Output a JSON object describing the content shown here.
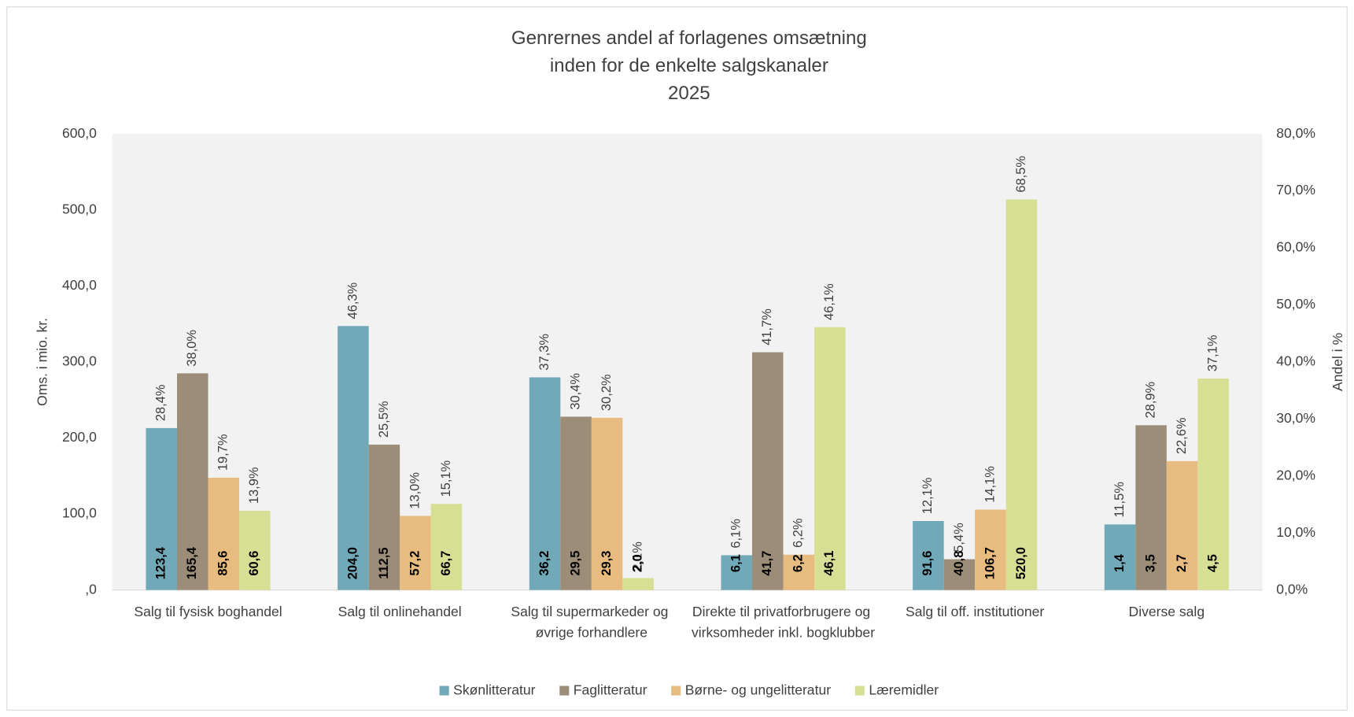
{
  "chart_data": {
    "type": "bar",
    "title": [
      "Genrernes andel af forlagenes omsætning",
      "inden for de enkelte salgskanaler",
      "2025"
    ],
    "ylabel": "Oms. i mio. kr.",
    "y2label": "Andel i %",
    "categories": [
      "Salg til fysisk boghandel",
      "Salg til onlinehandel",
      "Salg til supermarkeder og øvrige forhandlere",
      "Direkte til privatforbrugere og virksomheder inkl. bogklubber",
      "Salg til off. institutioner",
      "Diverse salg"
    ],
    "ylim": [
      0,
      600
    ],
    "yticks": [
      {
        "value": 0,
        "label": ",0"
      },
      {
        "value": 100,
        "label": "100,0"
      },
      {
        "value": 200,
        "label": "200,0"
      },
      {
        "value": 300,
        "label": "300,0"
      },
      {
        "value": 400,
        "label": "400,0"
      },
      {
        "value": 500,
        "label": "500,0"
      },
      {
        "value": 600,
        "label": "600,0"
      }
    ],
    "y2lim": [
      0,
      80
    ],
    "y2ticks": [
      {
        "value": 0,
        "label": "0,0%"
      },
      {
        "value": 10,
        "label": "10,0%"
      },
      {
        "value": 20,
        "label": "20,0%"
      },
      {
        "value": 30,
        "label": "30,0%"
      },
      {
        "value": 40,
        "label": "40,0%"
      },
      {
        "value": 50,
        "label": "50,0%"
      },
      {
        "value": 60,
        "label": "60,0%"
      },
      {
        "value": 70,
        "label": "70,0%"
      },
      {
        "value": 80,
        "label": "80,0%"
      }
    ],
    "legend": "bottom",
    "series": [
      {
        "name": "Skønlitteratur",
        "color": "#72a9b8",
        "axis": "y2",
        "values": [
          28.4,
          46.3,
          37.3,
          6.1,
          12.1,
          11.5
        ],
        "value_labels": [
          "28,4%",
          "46,3%",
          "37,3%",
          "6,1%",
          "12,1%",
          "11,5%"
        ],
        "amount_labels": [
          "123,4",
          "204,0",
          "36,2",
          "6,1",
          "91,6",
          "1,4"
        ]
      },
      {
        "name": "Faglitteratur",
        "color": "#9c8d78",
        "axis": "y2",
        "values": [
          38.0,
          25.5,
          30.4,
          41.7,
          5.4,
          28.9
        ],
        "value_labels": [
          "38,0%",
          "25,5%",
          "30,4%",
          "41,7%",
          "5,4%",
          "28,9%"
        ],
        "amount_labels": [
          "165,4",
          "112,5",
          "29,5",
          "41,7",
          "40,8",
          "3,5"
        ]
      },
      {
        "name": "Børne- og ungelitteratur",
        "color": "#e8bc80",
        "axis": "y2",
        "values": [
          19.7,
          13.0,
          30.2,
          6.2,
          14.1,
          22.6
        ],
        "value_labels": [
          "19,7%",
          "13,0%",
          "30,2%",
          "6,2%",
          "14,1%",
          "22,6%"
        ],
        "amount_labels": [
          "85,6",
          "57,2",
          "29,3",
          "6,2",
          "106,7",
          "2,7"
        ]
      },
      {
        "name": "Læremidler",
        "color": "#d6df94",
        "axis": "y2",
        "values": [
          13.9,
          15.1,
          2.1,
          46.1,
          68.5,
          37.1
        ],
        "value_labels": [
          "13,9%",
          "15,1%",
          "2,1%",
          "46,1%",
          "68,5%",
          "37,1%"
        ],
        "amount_labels": [
          "60,6",
          "66,7",
          "2,0",
          "46,1",
          "520,0",
          "4,5"
        ]
      }
    ]
  }
}
